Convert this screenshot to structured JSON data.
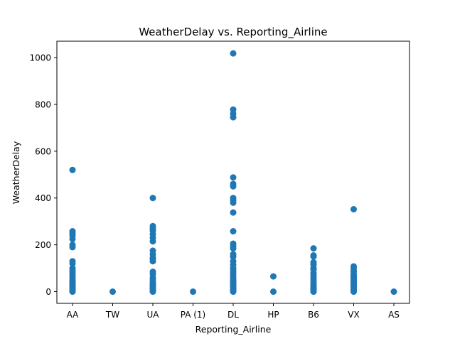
{
  "chart_data": {
    "type": "scatter",
    "title": "WeatherDelay vs. Reporting_Airline",
    "xlabel": "Reporting_Airline",
    "ylabel": "WeatherDelay",
    "categories": [
      "AA",
      "TW",
      "UA",
      "PA (1)",
      "DL",
      "HP",
      "B6",
      "VX",
      "AS"
    ],
    "yticks": [
      0,
      200,
      400,
      600,
      800,
      1000
    ],
    "ytick_labels": [
      "0",
      "200",
      "400",
      "600",
      "800",
      "1000"
    ],
    "ylim": [
      -50,
      1070
    ],
    "grid": false,
    "marker_color": "#1f77b4",
    "points": {
      "AA": [
        520,
        258,
        250,
        240,
        225,
        200,
        190,
        130,
        120,
        100,
        90,
        80,
        70,
        60,
        50,
        45,
        40,
        35,
        30,
        25,
        20,
        15,
        10,
        5,
        2,
        0
      ],
      "TW": [
        0
      ],
      "UA": [
        400,
        280,
        270,
        260,
        245,
        230,
        215,
        175,
        160,
        145,
        140,
        130,
        85,
        75,
        60,
        50,
        40,
        35,
        30,
        25,
        20,
        15,
        10,
        5,
        2,
        0
      ],
      "PA (1)": [
        0
      ],
      "DL": [
        1018,
        778,
        760,
        745,
        488,
        460,
        450,
        400,
        390,
        380,
        338,
        258,
        205,
        195,
        185,
        160,
        150,
        130,
        115,
        100,
        90,
        80,
        70,
        60,
        50,
        45,
        40,
        35,
        30,
        25,
        20,
        15,
        10,
        5,
        2,
        0
      ],
      "HP": [
        65,
        0
      ],
      "B6": [
        185,
        155,
        150,
        125,
        115,
        100,
        95,
        80,
        70,
        60,
        50,
        40,
        30,
        25,
        20,
        15,
        10,
        5,
        2,
        0
      ],
      "VX": [
        352,
        108,
        100,
        90,
        85,
        75,
        70,
        65,
        60,
        55,
        50,
        45,
        40,
        35,
        30,
        25,
        20,
        15,
        10,
        5,
        2,
        0
      ],
      "AS": [
        0
      ]
    }
  }
}
